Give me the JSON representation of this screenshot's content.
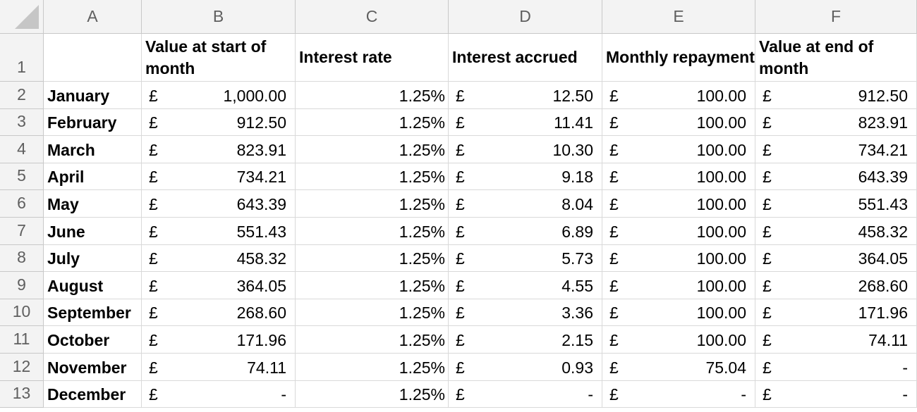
{
  "columns": [
    "A",
    "B",
    "C",
    "D",
    "E",
    "F"
  ],
  "row_numbers": [
    "1",
    "2",
    "3",
    "4",
    "5",
    "6",
    "7",
    "8",
    "9",
    "10",
    "11",
    "12",
    "13"
  ],
  "headers": {
    "start_value": "Value at start of month",
    "interest_rate": "Interest rate",
    "interest_accrued": "Interest accrued",
    "monthly_repayment": "Monthly repayment",
    "end_value": "Value at end of month"
  },
  "currency_symbol": "£",
  "rows": [
    {
      "month": "January",
      "start": "1,000.00",
      "rate": "1.25%",
      "accrued": "12.50",
      "repayment": "100.00",
      "end": "912.50"
    },
    {
      "month": "February",
      "start": "912.50",
      "rate": "1.25%",
      "accrued": "11.41",
      "repayment": "100.00",
      "end": "823.91"
    },
    {
      "month": "March",
      "start": "823.91",
      "rate": "1.25%",
      "accrued": "10.30",
      "repayment": "100.00",
      "end": "734.21"
    },
    {
      "month": "April",
      "start": "734.21",
      "rate": "1.25%",
      "accrued": "9.18",
      "repayment": "100.00",
      "end": "643.39"
    },
    {
      "month": "May",
      "start": "643.39",
      "rate": "1.25%",
      "accrued": "8.04",
      "repayment": "100.00",
      "end": "551.43"
    },
    {
      "month": "June",
      "start": "551.43",
      "rate": "1.25%",
      "accrued": "6.89",
      "repayment": "100.00",
      "end": "458.32"
    },
    {
      "month": "July",
      "start": "458.32",
      "rate": "1.25%",
      "accrued": "5.73",
      "repayment": "100.00",
      "end": "364.05"
    },
    {
      "month": "August",
      "start": "364.05",
      "rate": "1.25%",
      "accrued": "4.55",
      "repayment": "100.00",
      "end": "268.60"
    },
    {
      "month": "September",
      "start": "268.60",
      "rate": "1.25%",
      "accrued": "3.36",
      "repayment": "100.00",
      "end": "171.96"
    },
    {
      "month": "October",
      "start": "171.96",
      "rate": "1.25%",
      "accrued": "2.15",
      "repayment": "100.00",
      "end": "74.11"
    },
    {
      "month": "November",
      "start": "74.11",
      "rate": "1.25%",
      "accrued": "0.93",
      "repayment": "75.04",
      "end": "-"
    },
    {
      "month": "December",
      "start": "-",
      "rate": "1.25%",
      "accrued": "-",
      "repayment": "-",
      "end": "-"
    }
  ]
}
